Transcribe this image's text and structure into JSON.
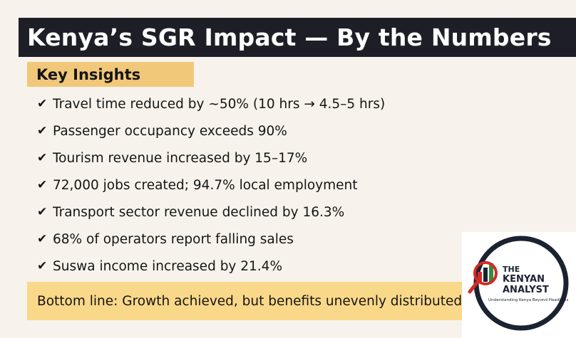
{
  "title": "Kenya’s SGR Impact — By the Numbers",
  "section_label": "Key Insights",
  "check_icon": "✔",
  "bullets": [
    "Travel time reduced by ~50% (10 hrs → 4.5–5 hrs)",
    "Passenger occupancy exceeds 90%",
    "Tourism revenue increased by 15–17%",
    "72,000 jobs created; 94.7% local employment",
    "Transport sector revenue declined by 16.3%",
    "68% of operators report falling sales",
    "Suswa income increased by 21.4%"
  ],
  "bottom_line": "Bottom line: Growth achieved, but benefits unevenly distributed",
  "logo": {
    "line1": "THE",
    "line2": "KENYAN",
    "line3": "ANALYST",
    "tagline": "Understanding Kenya Beyond Headlines"
  },
  "colors": {
    "title_bar": "#1e1f26",
    "insights_tag": "#f1c87a",
    "bottom_box": "#fad88a",
    "background": "#f7f3ec",
    "logo_ring": "#1b2230",
    "logo_red": "#d42a27",
    "logo_green": "#2f8f3a"
  }
}
